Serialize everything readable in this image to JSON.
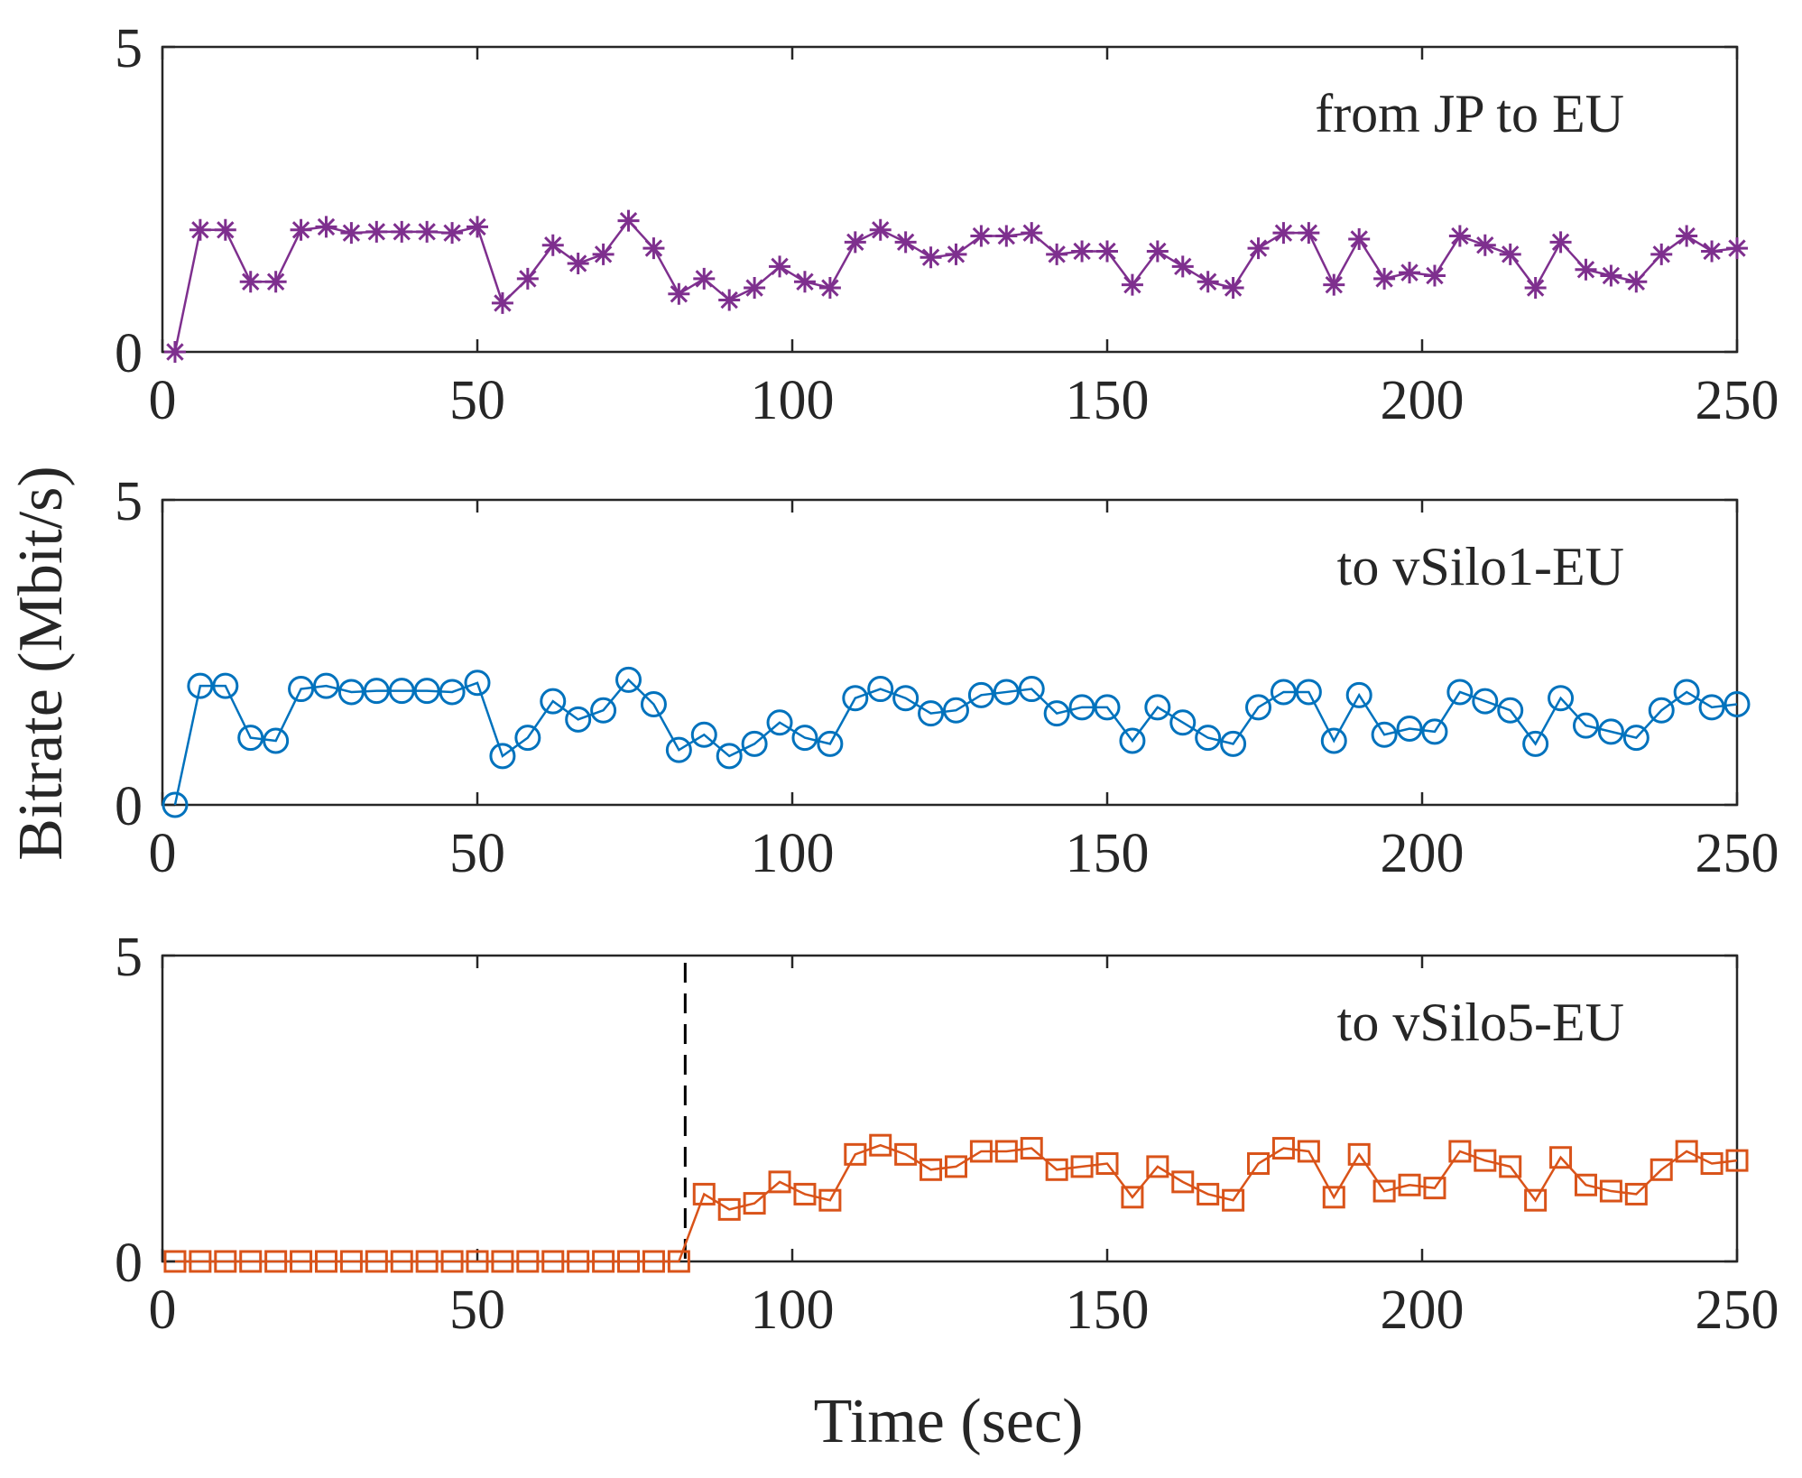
{
  "y_axis_label": "Bitrate (Mbit/s)",
  "x_axis_label": "Time (sec)",
  "chart_data": [
    {
      "type": "line",
      "title": "from JP to EU",
      "marker": "asterisk",
      "color": "#7E2F8E",
      "xlim": [
        0,
        250
      ],
      "ylim": [
        0,
        5
      ],
      "xticks": [
        0,
        50,
        100,
        150,
        200,
        250
      ],
      "yticks": [
        0,
        5
      ],
      "x": [
        2,
        6,
        10,
        14,
        18,
        22,
        26,
        30,
        34,
        38,
        42,
        46,
        50,
        54,
        58,
        62,
        66,
        70,
        74,
        78,
        82,
        86,
        90,
        94,
        98,
        102,
        106,
        110,
        114,
        118,
        122,
        126,
        130,
        134,
        138,
        142,
        146,
        150,
        154,
        158,
        162,
        166,
        170,
        174,
        178,
        182,
        186,
        190,
        194,
        198,
        202,
        206,
        210,
        214,
        218,
        222,
        226,
        230,
        234,
        238,
        242,
        246,
        250
      ],
      "values": [
        0.0,
        2.0,
        2.0,
        1.15,
        1.15,
        2.0,
        2.05,
        1.95,
        1.97,
        1.97,
        1.97,
        1.95,
        2.05,
        0.8,
        1.2,
        1.75,
        1.45,
        1.6,
        2.15,
        1.7,
        0.95,
        1.2,
        0.85,
        1.05,
        1.4,
        1.15,
        1.05,
        1.8,
        2.0,
        1.8,
        1.55,
        1.6,
        1.9,
        1.9,
        1.95,
        1.6,
        1.65,
        1.65,
        1.1,
        1.65,
        1.4,
        1.15,
        1.05,
        1.7,
        1.95,
        1.95,
        1.1,
        1.85,
        1.2,
        1.3,
        1.25,
        1.9,
        1.75,
        1.6,
        1.05,
        1.8,
        1.35,
        1.25,
        1.15,
        1.6,
        1.9,
        1.65,
        1.7
      ]
    },
    {
      "type": "line",
      "title": "to vSilo1-EU",
      "marker": "circle",
      "color": "#0072BD",
      "xlim": [
        0,
        250
      ],
      "ylim": [
        0,
        5
      ],
      "xticks": [
        0,
        50,
        100,
        150,
        200,
        250
      ],
      "yticks": [
        0,
        5
      ],
      "x": [
        2,
        6,
        10,
        14,
        18,
        22,
        26,
        30,
        34,
        38,
        42,
        46,
        50,
        54,
        58,
        62,
        66,
        70,
        74,
        78,
        82,
        86,
        90,
        94,
        98,
        102,
        106,
        110,
        114,
        118,
        122,
        126,
        130,
        134,
        138,
        142,
        146,
        150,
        154,
        158,
        162,
        166,
        170,
        174,
        178,
        182,
        186,
        190,
        194,
        198,
        202,
        206,
        210,
        214,
        218,
        222,
        226,
        230,
        234,
        238,
        242,
        246,
        250
      ],
      "values": [
        0.0,
        1.95,
        1.95,
        1.1,
        1.05,
        1.9,
        1.95,
        1.85,
        1.87,
        1.87,
        1.87,
        1.85,
        2.0,
        0.8,
        1.1,
        1.7,
        1.4,
        1.55,
        2.05,
        1.65,
        0.9,
        1.15,
        0.8,
        1.0,
        1.35,
        1.1,
        1.0,
        1.75,
        1.9,
        1.75,
        1.5,
        1.55,
        1.8,
        1.85,
        1.9,
        1.5,
        1.6,
        1.6,
        1.05,
        1.6,
        1.35,
        1.1,
        1.0,
        1.6,
        1.85,
        1.85,
        1.05,
        1.8,
        1.15,
        1.25,
        1.2,
        1.85,
        1.7,
        1.55,
        1.0,
        1.75,
        1.3,
        1.2,
        1.1,
        1.55,
        1.85,
        1.6,
        1.65
      ]
    },
    {
      "type": "line",
      "title": "to vSilo5-EU",
      "marker": "square",
      "color": "#D95319",
      "xlim": [
        0,
        250
      ],
      "ylim": [
        0,
        5
      ],
      "xticks": [
        0,
        50,
        100,
        150,
        200,
        250
      ],
      "yticks": [
        0,
        5
      ],
      "vline_x": 83,
      "x": [
        2,
        6,
        10,
        14,
        18,
        22,
        26,
        30,
        34,
        38,
        42,
        46,
        50,
        54,
        58,
        62,
        66,
        70,
        74,
        78,
        82,
        86,
        90,
        94,
        98,
        102,
        106,
        110,
        114,
        118,
        122,
        126,
        130,
        134,
        138,
        142,
        146,
        150,
        154,
        158,
        162,
        166,
        170,
        174,
        178,
        182,
        186,
        190,
        194,
        198,
        202,
        206,
        210,
        214,
        218,
        222,
        226,
        230,
        234,
        238,
        242,
        246,
        250
      ],
      "values": [
        0.0,
        0.0,
        0.0,
        0.0,
        0.0,
        0.0,
        0.0,
        0.0,
        0.0,
        0.0,
        0.0,
        0.0,
        0.0,
        0.0,
        0.0,
        0.0,
        0.0,
        0.0,
        0.0,
        0.0,
        0.0,
        1.1,
        0.85,
        0.95,
        1.3,
        1.1,
        1.0,
        1.75,
        1.9,
        1.75,
        1.5,
        1.55,
        1.8,
        1.8,
        1.85,
        1.5,
        1.55,
        1.6,
        1.05,
        1.55,
        1.3,
        1.1,
        1.0,
        1.6,
        1.85,
        1.8,
        1.05,
        1.75,
        1.15,
        1.25,
        1.2,
        1.8,
        1.65,
        1.55,
        1.0,
        1.7,
        1.25,
        1.15,
        1.1,
        1.5,
        1.8,
        1.6,
        1.65
      ]
    }
  ]
}
